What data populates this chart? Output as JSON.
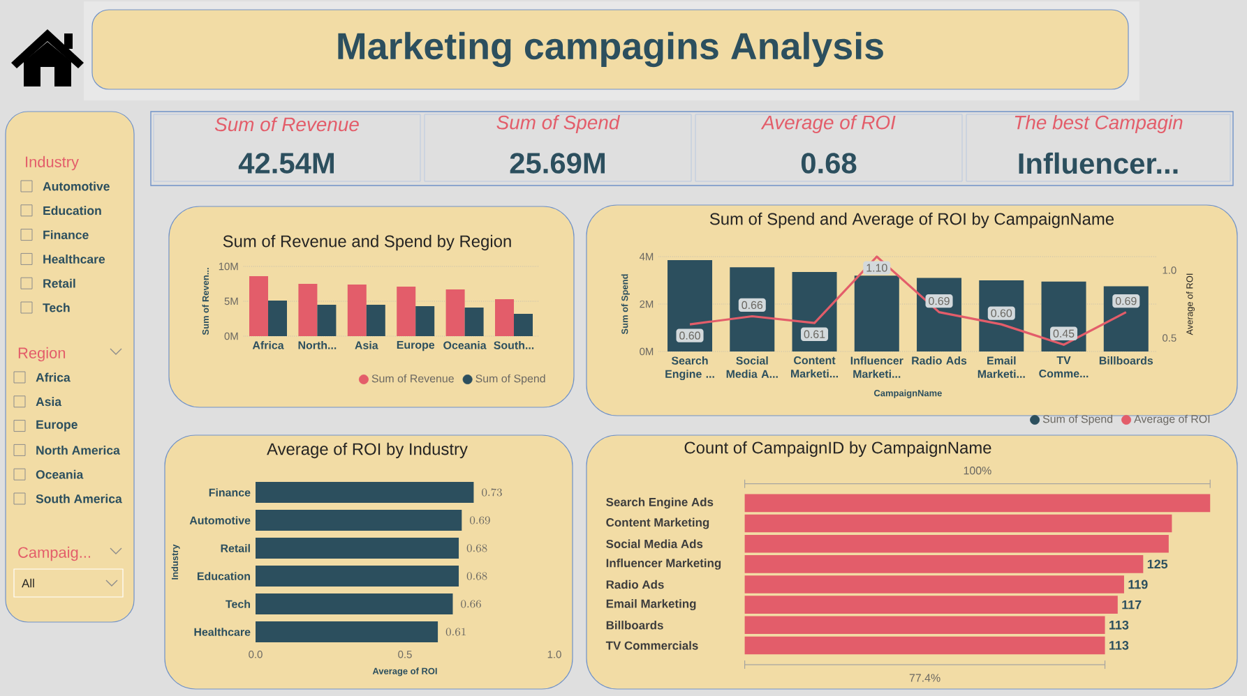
{
  "chart_data": [
    {
      "type": "other",
      "title": "Marketing campagins Analysis"
    },
    {
      "type": "other",
      "title": "Sum of Revenue",
      "annotations": [
        "42.54M"
      ]
    },
    {
      "type": "other",
      "title": "Sum of Spend",
      "annotations": [
        "25.69M"
      ]
    },
    {
      "type": "other",
      "title": "Average of ROI",
      "annotations": [
        "0.68"
      ]
    },
    {
      "type": "other",
      "title": "The best Campagin",
      "annotations": [
        "Influencer..."
      ]
    },
    {
      "type": "other",
      "title": "Industry",
      "annotations": [
        "Automotive",
        "Education",
        "Finance",
        "Healthcare",
        "Retail",
        "Tech"
      ]
    },
    {
      "type": "other",
      "title": "Region",
      "annotations": [
        "Africa",
        "Asia",
        "Europe",
        "North America",
        "Oceania",
        "South America"
      ]
    },
    {
      "type": "other",
      "title": "Campaig...",
      "annotations": [
        "All"
      ]
    },
    {
      "type": "bar",
      "title": "Sum of Revenue and Spend by Region",
      "ylabel": "Sum of Reven...",
      "categories": [
        "Africa",
        "North...",
        "Asia",
        "Europe",
        "Oceania",
        "South..."
      ],
      "series": [
        {
          "name": "Sum of Revenue",
          "color": "#e35d6a",
          "values": [
            8.6,
            7.5,
            7.4,
            7.1,
            6.7,
            5.3
          ]
        },
        {
          "name": "Sum of Spend",
          "color": "#2c4f5e",
          "values": [
            5.1,
            4.5,
            4.5,
            4.3,
            4.1,
            3.2
          ]
        }
      ],
      "ylim": [
        0,
        10
      ],
      "yticks": [
        {
          "value": 0,
          "label": "0M"
        },
        {
          "value": 5,
          "label": "5M"
        },
        {
          "value": 10,
          "label": "10M"
        }
      ],
      "grid": "y",
      "legend": "bottom right"
    },
    {
      "type": "bar",
      "title": "Sum of Spend and Average of ROI by CampaignName",
      "xlabel": "CampaignName",
      "ylabel": "Sum of Spend",
      "y2label": "Average of ROI",
      "categories": [
        "Search Engine ...",
        "Social Media A...",
        "Content Marketi...",
        "Influencer Marketi...",
        "Radio Ads",
        "Email Marketi...",
        "TV Comme...",
        "Billboards"
      ],
      "series": [
        {
          "name": "Sum of Spend",
          "color": "#2c4f5e",
          "values": [
            3.85,
            3.55,
            3.35,
            3.2,
            3.1,
            3.0,
            2.95,
            2.75
          ]
        },
        {
          "name": "Average of ROI",
          "type": "line",
          "axis": "y2",
          "color": "#e35d6a",
          "values": [
            0.6,
            0.66,
            0.61,
            1.1,
            0.69,
            0.6,
            0.45,
            0.69
          ],
          "value_labels": [
            "0.60",
            "0.66",
            "0.61",
            "1.10",
            "0.69",
            "0.60",
            "0.45",
            "0.69"
          ]
        }
      ],
      "ylim": [
        0,
        4
      ],
      "yticks": [
        {
          "value": 0,
          "label": "0M"
        },
        {
          "value": 2,
          "label": "2M"
        },
        {
          "value": 4,
          "label": "4M"
        }
      ],
      "y2lim": [
        0.4,
        1.1
      ],
      "y2ticks": [
        0.5,
        {
          "value": 1,
          "label": "1.0"
        }
      ],
      "grid": "y",
      "legend": "bottom right"
    },
    {
      "type": "bar",
      "orientation": "horizontal",
      "title": "Average of ROI by Industry",
      "xlabel": "Average of ROI",
      "ylabel": "Industry",
      "categories": [
        "Finance",
        "Automotive",
        "Retail",
        "Education",
        "Tech",
        "Healthcare"
      ],
      "values": [
        0.73,
        0.69,
        0.68,
        0.68,
        0.66,
        0.61
      ],
      "color": "#2c4f5e",
      "xlim": [
        0,
        1
      ],
      "xticks": [
        {
          "value": 0,
          "label": "0.0"
        },
        0.5,
        {
          "value": 1,
          "label": "1.0"
        }
      ],
      "data_labels": true
    },
    {
      "type": "bar",
      "orientation": "horizontal",
      "title": "Count of CampaignID by CampaignName",
      "categories": [
        "Search Engine Ads",
        "Content Marketing",
        "Social Media Ads",
        "Influencer Marketing",
        "Radio Ads",
        "Email Marketing",
        "Billboards",
        "TV Commercials"
      ],
      "values": [
        146,
        134,
        133,
        125,
        119,
        117,
        113,
        113
      ],
      "value_labels": [
        null,
        null,
        null,
        "125",
        "119",
        "117",
        "113",
        "113"
      ],
      "color": "#e35d6a",
      "xlim": [
        0,
        146
      ],
      "tick_labels": "y",
      "annotations": [
        "100%",
        "77.4%"
      ]
    }
  ]
}
